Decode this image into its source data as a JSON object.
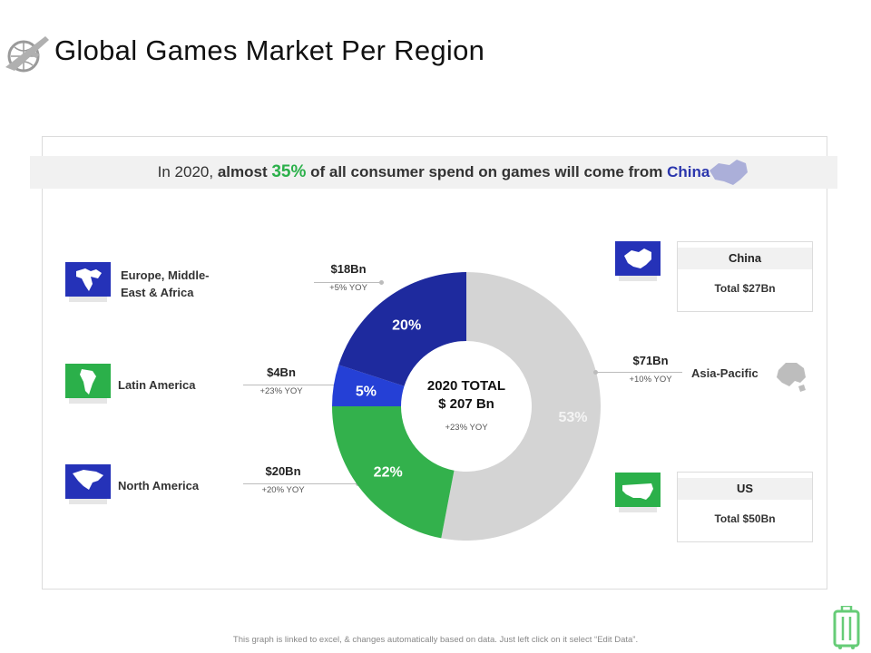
{
  "title": "Global Games Market Per Region",
  "banner": {
    "prefix": "In 2020, ",
    "emphasis_1": "almost ",
    "highlight_percent": "35%",
    "emphasis_2": " of all consumer spend on games will come from ",
    "highlight_country": "China"
  },
  "regions": [
    {
      "label_line1": "Europe, Middle-",
      "label_line2": "East & Africa",
      "icon": "europe-africa-map-icon"
    },
    {
      "label": "Latin America",
      "icon": "latin-america-map-icon"
    },
    {
      "label": "North America",
      "icon": "north-america-map-icon"
    },
    {
      "label": "Asia-Pacific",
      "icon": "asia-pacific-map-icon"
    }
  ],
  "stats": {
    "europe": {
      "value": "$18Bn",
      "yoy": "+5% YOY"
    },
    "latin_america": {
      "value": "$4Bn",
      "yoy": "+23% YOY"
    },
    "north_america": {
      "value": "$20Bn",
      "yoy": "+20% YOY"
    },
    "asia_pacific": {
      "value": "$71Bn",
      "yoy": "+10% YOY"
    }
  },
  "cards": {
    "china": {
      "title": "China",
      "body": "Total $27Bn",
      "icon": "china-map-icon"
    },
    "us": {
      "title": "US",
      "body": "Total $50Bn",
      "icon": "us-map-icon"
    }
  },
  "center": {
    "line1": "2020 TOTAL",
    "line2": "$ 207 Bn",
    "yoy": "+23% YOY"
  },
  "footer": "This graph is linked to excel, & changes automatically based on data. Just left click on it select “Edit Data”.",
  "colors": {
    "europe": "#1e2a9e",
    "latin_america": "#2540d6",
    "north_america": "#33b14c",
    "asia_pacific": "#d4d4d4",
    "icon_blue": "#2532b8",
    "icon_green": "#2bb04a"
  },
  "chart_data": {
    "type": "pie",
    "categories": [
      "Asia-Pacific",
      "North America",
      "Latin America",
      "Europe, Middle-East & Africa"
    ],
    "values": [
      53,
      22,
      5,
      20
    ],
    "labels": [
      "53%",
      "22%",
      "5%",
      "20%"
    ],
    "unit": "%"
  }
}
